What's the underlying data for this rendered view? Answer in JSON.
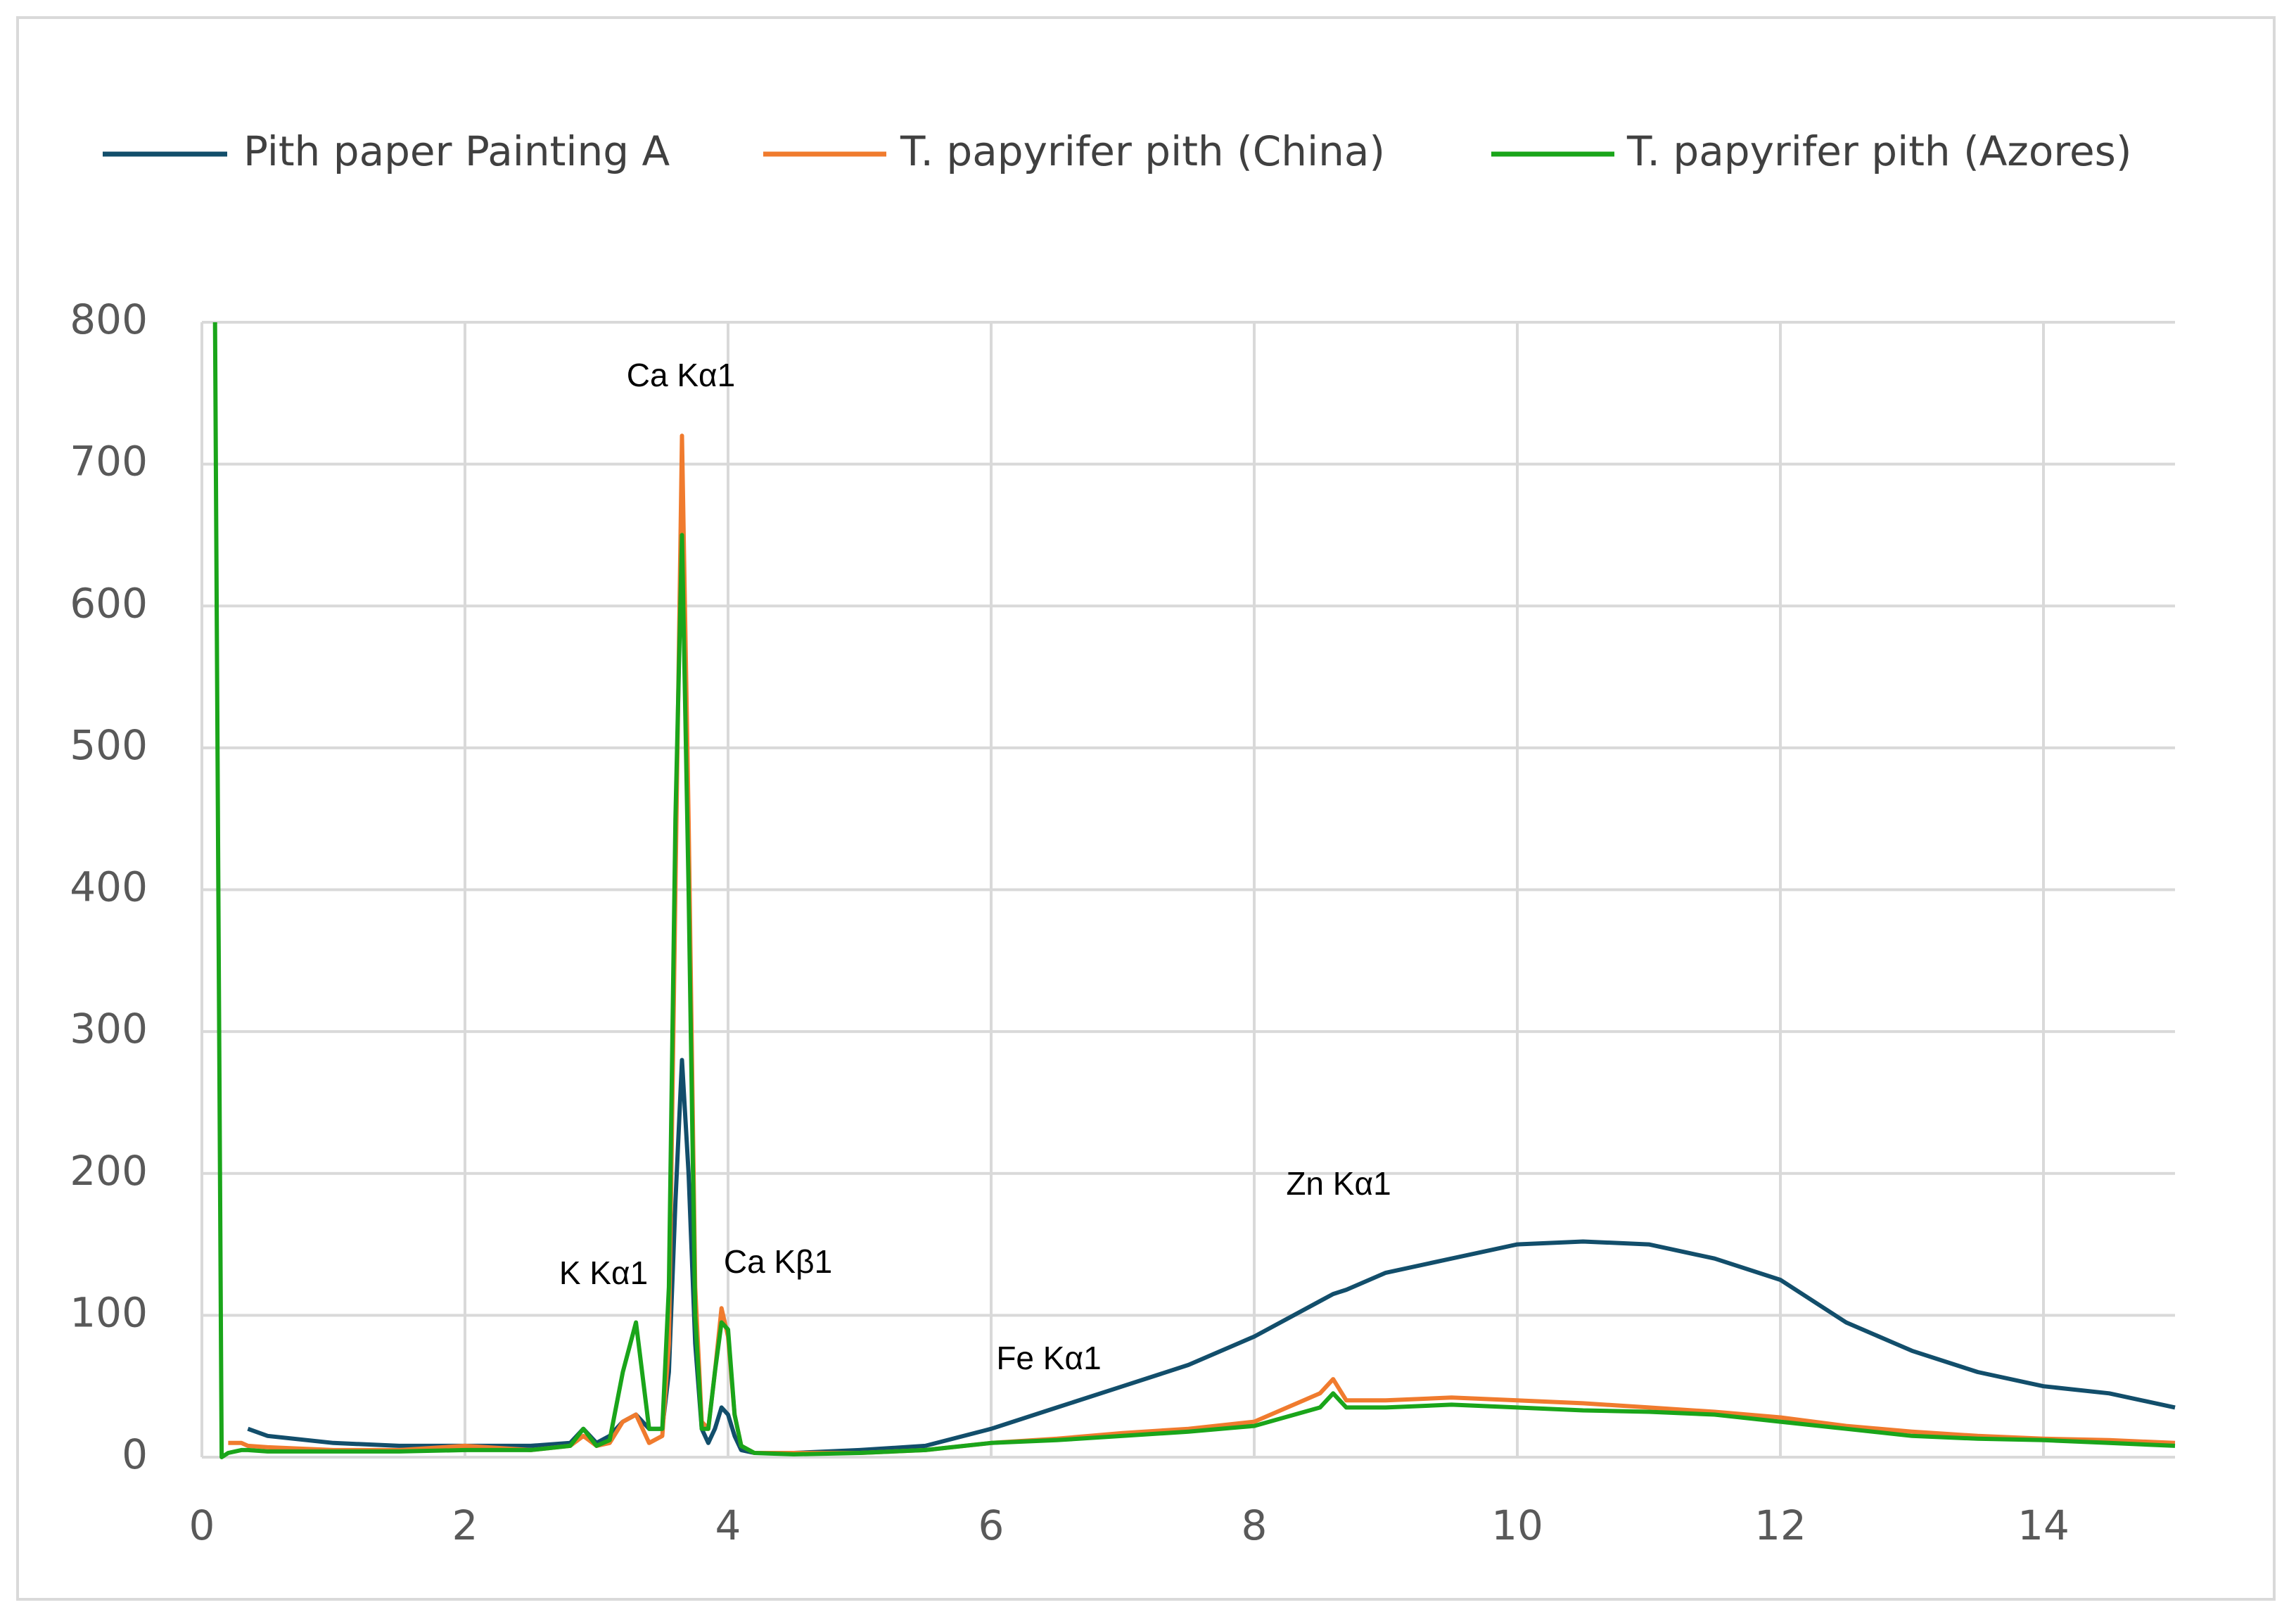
{
  "chart_data": {
    "type": "line",
    "x": [
      0,
      0.1,
      0.15,
      0.2,
      0.3,
      0.35,
      0.5,
      1,
      1.5,
      2,
      2.5,
      2.8,
      2.9,
      3.0,
      3.1,
      3.2,
      3.3,
      3.4,
      3.5,
      3.55,
      3.6,
      3.65,
      3.7,
      3.75,
      3.8,
      3.85,
      3.9,
      3.95,
      4.0,
      4.05,
      4.1,
      4.2,
      4.5,
      5,
      5.5,
      6,
      6.5,
      7,
      7.5,
      8,
      8.5,
      8.6,
      8.7,
      9,
      9.5,
      10,
      10.5,
      11,
      11.5,
      12,
      12.5,
      13,
      13.5,
      14,
      14.5,
      15
    ],
    "series": [
      {
        "name": "Pith paper Painting A",
        "color": "#124e6b",
        "values": [
          null,
          null,
          null,
          null,
          null,
          20,
          15,
          10,
          8,
          8,
          8,
          10,
          20,
          10,
          15,
          25,
          30,
          20,
          20,
          60,
          180,
          280,
          200,
          80,
          20,
          10,
          20,
          35,
          30,
          15,
          5,
          3,
          3,
          5,
          8,
          20,
          35,
          50,
          65,
          85,
          110,
          115,
          118,
          130,
          140,
          150,
          152,
          150,
          140,
          125,
          95,
          75,
          60,
          50,
          45,
          35
        ]
      },
      {
        "name": "T. papyrifer pith (China)",
        "color": "#f07b2e",
        "values": [
          null,
          null,
          null,
          10,
          10,
          8,
          7,
          5,
          5,
          8,
          5,
          8,
          15,
          8,
          10,
          25,
          30,
          10,
          15,
          80,
          400,
          720,
          450,
          120,
          25,
          20,
          60,
          105,
          85,
          30,
          8,
          3,
          3,
          3,
          5,
          10,
          13,
          17,
          20,
          25,
          45,
          55,
          40,
          40,
          42,
          40,
          38,
          35,
          32,
          28,
          22,
          18,
          15,
          13,
          12,
          10
        ]
      },
      {
        "name": "T. papyrifer pith (Azores)",
        "color": "#1aa51a",
        "values": [
          null,
          800,
          0,
          3,
          5,
          5,
          4,
          4,
          4,
          5,
          5,
          8,
          20,
          8,
          12,
          60,
          95,
          20,
          20,
          120,
          450,
          650,
          400,
          100,
          20,
          20,
          60,
          95,
          90,
          30,
          8,
          3,
          2,
          3,
          5,
          10,
          12,
          15,
          18,
          22,
          35,
          45,
          35,
          35,
          37,
          35,
          33,
          32,
          30,
          25,
          20,
          15,
          13,
          12,
          10,
          8
        ]
      }
    ],
    "annotations": [
      "Ca Kα1",
      "K Kα1",
      "Ca Kβ1",
      "Fe Kα1",
      "Zn Kα1"
    ],
    "xlim": [
      0,
      15
    ],
    "xticks": [
      0,
      2,
      4,
      6,
      8,
      10,
      12,
      14
    ],
    "ylim": [
      0,
      800
    ],
    "yticks": [
      0,
      100,
      200,
      300,
      400,
      500,
      600,
      700,
      800
    ],
    "grid": true,
    "legend": "top"
  }
}
